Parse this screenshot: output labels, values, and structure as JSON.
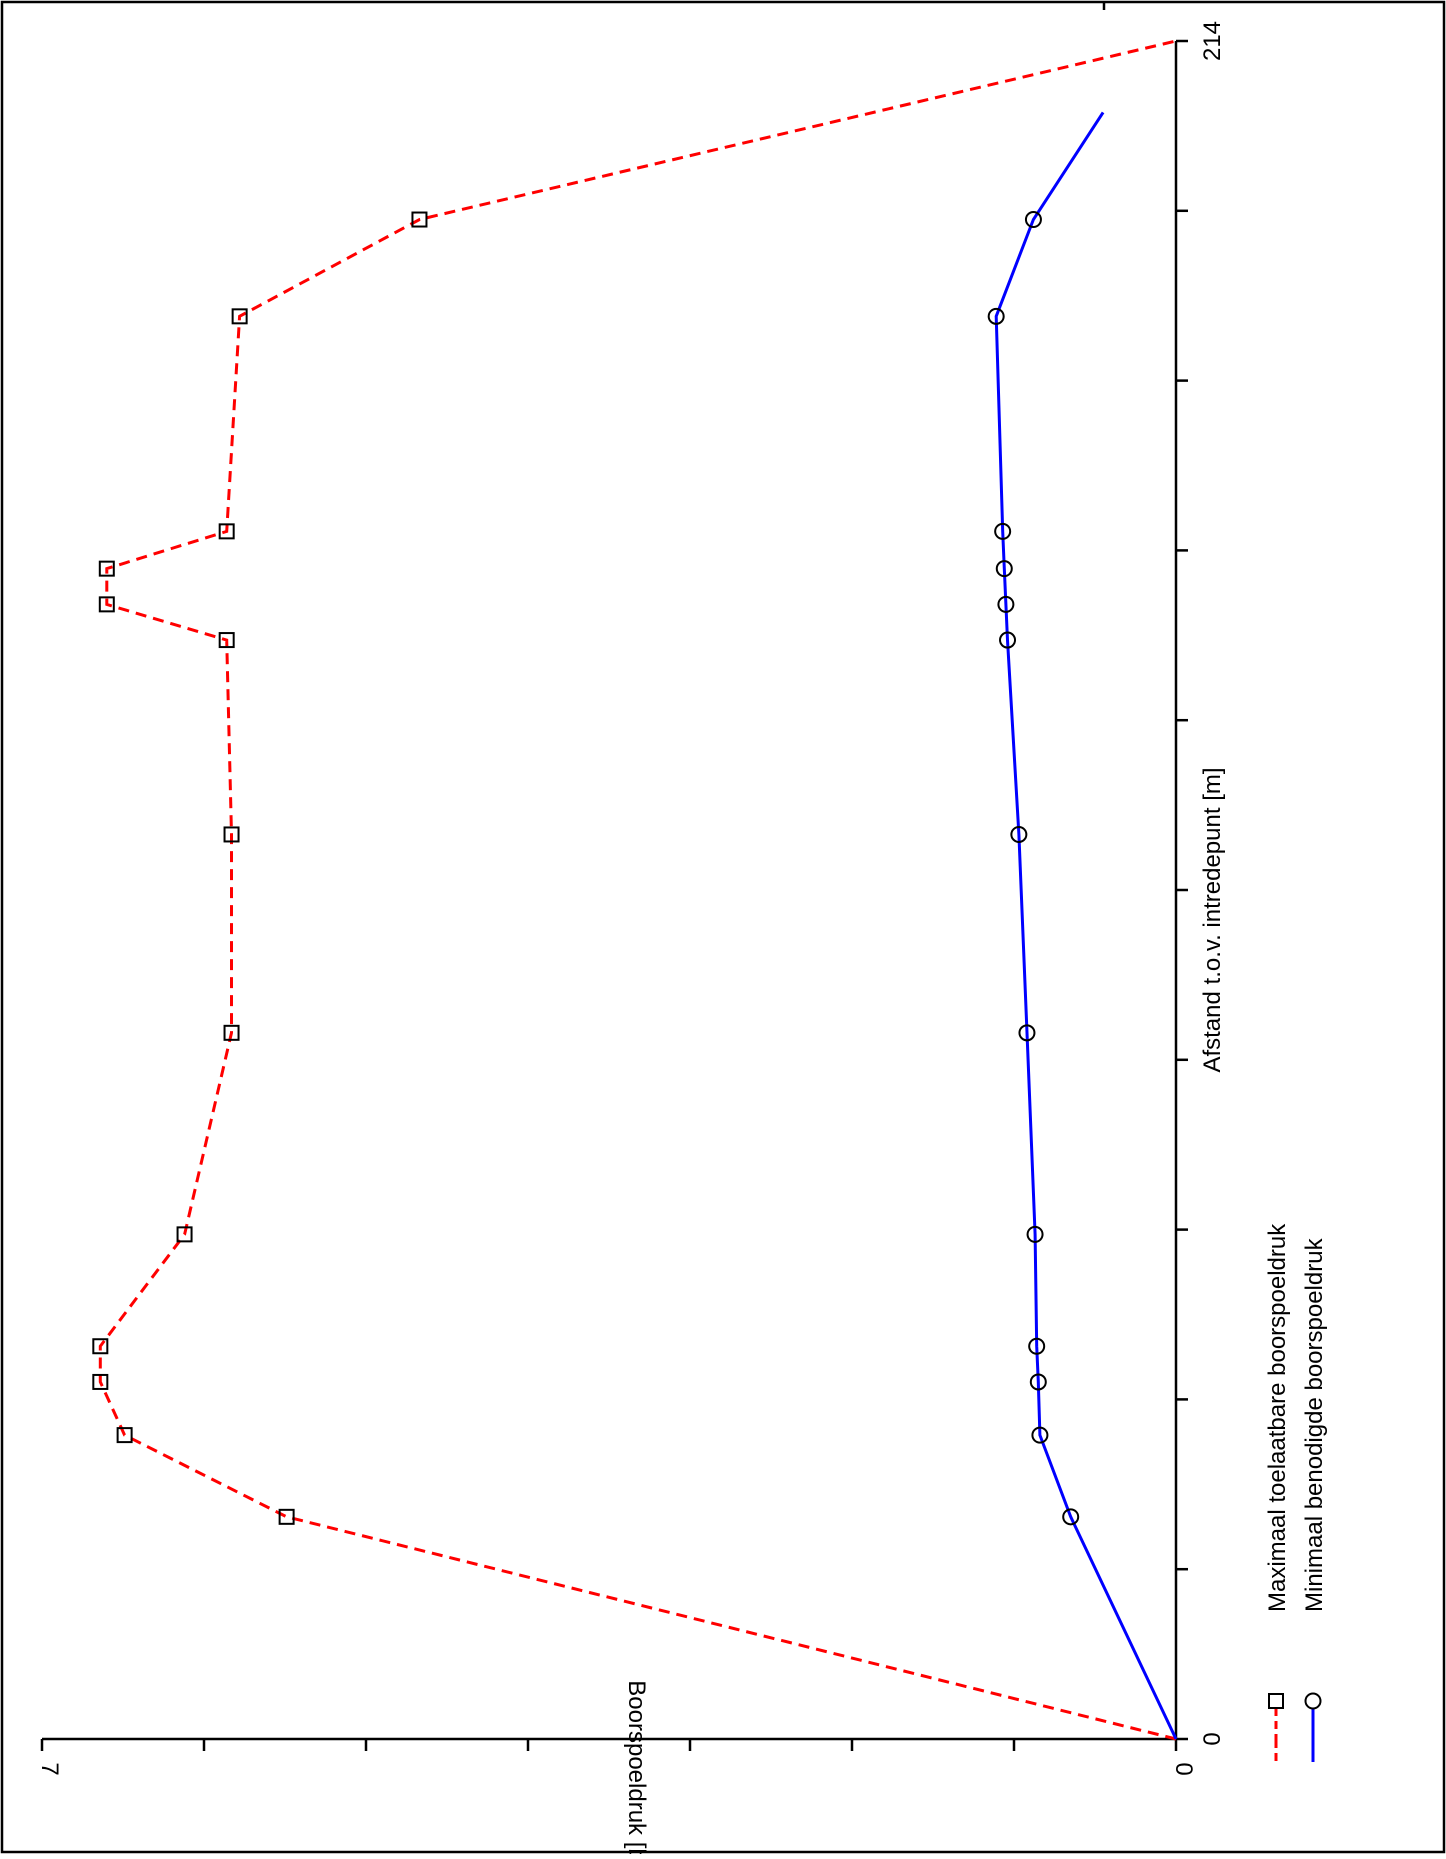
{
  "chart_data": {
    "type": "line",
    "orientation": "rotated-90-clockwise",
    "xlabel": "Afstand t.o.v. intredepunt [m]",
    "ylabel": "Boorspoeldruk [bar]",
    "xlim": [
      0,
      214
    ],
    "ylim": [
      0,
      7
    ],
    "x_tick_labels": [
      "0",
      "214"
    ],
    "y_tick_labels": [
      "0",
      "7"
    ],
    "x_tick_count": 11,
    "y_tick_count": 8,
    "grid": false,
    "legend_position": "bottom-left",
    "series": [
      {
        "name": "Maximaal toelaatbare boorspoeldruk",
        "color": "#ff0000",
        "line_style": "dashed",
        "marker": "square",
        "x": [
          0,
          28.0,
          38.3,
          45.0,
          49.5,
          63.6,
          89.0,
          114.0,
          138.5,
          143.0,
          147.5,
          152.2,
          179.3,
          191.5,
          214
        ],
        "y": [
          0,
          5.49,
          6.49,
          6.64,
          6.64,
          6.12,
          5.83,
          5.83,
          5.86,
          6.6,
          6.6,
          5.86,
          5.78,
          4.67,
          0
        ]
      },
      {
        "name": "Minimaal benodigde boorspoeldruk",
        "color": "#0000ff",
        "line_style": "solid",
        "marker": "circle",
        "x": [
          0,
          28.0,
          38.3,
          45.0,
          49.5,
          63.6,
          89.0,
          114.0,
          138.5,
          143.0,
          147.5,
          152.2,
          179.3,
          191.5,
          205.0
        ],
        "y": [
          0,
          0.65,
          0.84,
          0.85,
          0.86,
          0.87,
          0.92,
          0.97,
          1.04,
          1.05,
          1.06,
          1.07,
          1.11,
          0.88,
          0.45
        ]
      }
    ]
  }
}
